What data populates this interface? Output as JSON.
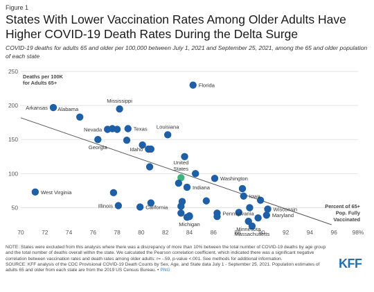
{
  "figure_label": "Figure 1",
  "title": "States With Lower Vaccination Rates Among Older Adults Have Higher COVID-19 Death Rates During the Delta Surge",
  "subtitle": "COVID-19 deaths for adults 65 and older per 100,000 between July 1, 2021 and September 25, 2021, among the 65 and older population of each state",
  "note_text": "NOTE: States were excluded from this analysis where there was a discrepancy of more than 10% between the total number of COVID-19 deaths by age group and the total number of deaths overall within the state. We calculated the Pearson correlation coefficient, which indicated there was a significant negative correlation between vaccination rates and death rates among older adults: r= -.59, p-value <.001. See methods for additional information.",
  "source_text": "SOURCE: KFF analysis of the CDC Provisional COVID-19 Death Counts by Sex, Age, and State data July 1 - September 25, 2021. Population estimates of adults 65 and older from each state are from the 2019 US Census Bureau. •",
  "source_link": "PNG",
  "logo": "KFF",
  "chart_data": {
    "type": "scatter",
    "ylabel": "Deaths per 100K for Adults 65+",
    "xlabel": "Percent of 65+ Pop. Fully Vaccinated",
    "xlim": [
      70,
      98
    ],
    "ylim": [
      25,
      250
    ],
    "x_ticks": [
      "70",
      "72",
      "74",
      "76",
      "78",
      "80",
      "82",
      "84",
      "86",
      "88",
      "90",
      "92",
      "94",
      "96",
      "98%"
    ],
    "y_ticks": [
      "50",
      "100",
      "150",
      "200",
      "250"
    ],
    "grid": true,
    "colors": {
      "point": "#1f5fa6",
      "highlight": "#3fb37f",
      "trend": "#555555"
    },
    "trendline": [
      [
        70,
        182
      ],
      [
        95.8,
        25
      ]
    ],
    "points": [
      {
        "label": "Florida",
        "x": 84.3,
        "y": 230
      },
      {
        "label": "Arkansas",
        "x": 72.7,
        "y": 197
      },
      {
        "label": "Mississippi",
        "x": 78.2,
        "y": 195
      },
      {
        "label": "Alabama",
        "x": 74.9,
        "y": 183
      },
      {
        "label": "Nevada",
        "x": 77.2,
        "y": 165
      },
      {
        "label": "",
        "x": 77.6,
        "y": 166
      },
      {
        "label": "",
        "x": 78.0,
        "y": 165
      },
      {
        "label": "Texas",
        "x": 78.9,
        "y": 166
      },
      {
        "label": "Louisiana",
        "x": 82.2,
        "y": 157
      },
      {
        "label": "Georgia",
        "x": 76.4,
        "y": 150
      },
      {
        "label": "",
        "x": 78.8,
        "y": 149
      },
      {
        "label": "",
        "x": 80.1,
        "y": 142
      },
      {
        "label": "Idaho",
        "x": 80.6,
        "y": 136
      },
      {
        "label": "",
        "x": 80.8,
        "y": 136
      },
      {
        "label": "",
        "x": 83.6,
        "y": 125
      },
      {
        "label": "",
        "x": 80.7,
        "y": 110
      },
      {
        "label": "",
        "x": 84.5,
        "y": 100
      },
      {
        "label": "United States",
        "x": 83.3,
        "y": 94,
        "highlight": true
      },
      {
        "label": "Washington",
        "x": 86.1,
        "y": 93
      },
      {
        "label": "",
        "x": 83.1,
        "y": 86
      },
      {
        "label": "Indiana",
        "x": 83.8,
        "y": 80
      },
      {
        "label": "",
        "x": 88.4,
        "y": 78
      },
      {
        "label": "West Virginia",
        "x": 71.2,
        "y": 73
      },
      {
        "label": "",
        "x": 77.7,
        "y": 72
      },
      {
        "label": "Iowa",
        "x": 88.5,
        "y": 67
      },
      {
        "label": "",
        "x": 89.9,
        "y": 61
      },
      {
        "label": "",
        "x": 83.4,
        "y": 59
      },
      {
        "label": "",
        "x": 85.4,
        "y": 60
      },
      {
        "label": "",
        "x": 80.8,
        "y": 57
      },
      {
        "label": "California",
        "x": 79.9,
        "y": 51
      },
      {
        "label": "Illinois",
        "x": 78.1,
        "y": 53
      },
      {
        "label": "",
        "x": 83.3,
        "y": 52
      },
      {
        "label": "Wisconsin",
        "x": 90.5,
        "y": 48
      },
      {
        "label": "",
        "x": 89.0,
        "y": 50
      },
      {
        "label": "Pennsylvania",
        "x": 86.3,
        "y": 42
      },
      {
        "label": "",
        "x": 88.1,
        "y": 43
      },
      {
        "label": "",
        "x": 83.3,
        "y": 42
      },
      {
        "label": "Maryland",
        "x": 90.4,
        "y": 39
      },
      {
        "label": "",
        "x": 84.0,
        "y": 38
      },
      {
        "label": "",
        "x": 83.8,
        "y": 36
      },
      {
        "label": "",
        "x": 86.3,
        "y": 37
      },
      {
        "label": "",
        "x": 89.7,
        "y": 35
      },
      {
        "label": "Minnesota",
        "x": 88.9,
        "y": 30
      },
      {
        "label": "Michigan",
        "x": 84.0,
        "y": 37
      },
      {
        "label": "Massachusetts",
        "x": 89.2,
        "y": 23
      }
    ]
  }
}
